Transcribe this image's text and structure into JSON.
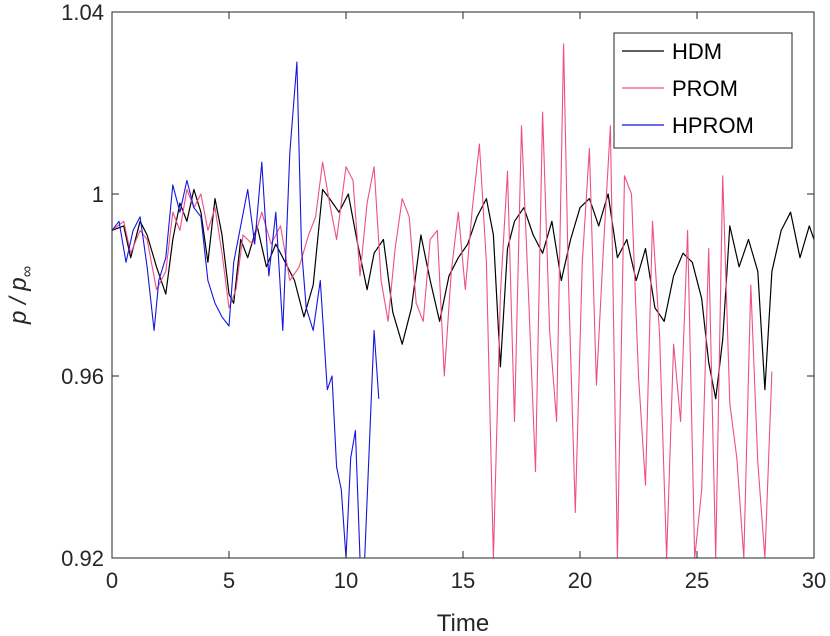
{
  "chart_data": {
    "type": "line",
    "xlabel": "Time",
    "ylabel": {
      "base": "p / p",
      "subscript": "∞"
    },
    "xlim": [
      0,
      30
    ],
    "ylim": [
      0.92,
      1.04
    ],
    "xticks": [
      0,
      5,
      10,
      15,
      20,
      25,
      30
    ],
    "xtick_labels": [
      "0",
      "5",
      "10",
      "15",
      "20",
      "25",
      "30"
    ],
    "yticks": [
      0.92,
      0.96,
      1,
      1.04
    ],
    "ytick_labels": [
      "0.92",
      "0.96",
      "1",
      "1.04"
    ],
    "grid": false,
    "legend_position": "top-right",
    "series": [
      {
        "name": "HDM",
        "color": "#000000",
        "x": [
          0,
          0.5,
          0.8,
          1.2,
          1.5,
          1.9,
          2.3,
          2.6,
          2.9,
          3.2,
          3.5,
          3.8,
          4.1,
          4.4,
          4.7,
          5.0,
          5.2,
          5.5,
          5.8,
          6.2,
          6.6,
          7.0,
          7.4,
          7.8,
          8.2,
          8.6,
          9.0,
          9.3,
          9.7,
          10.1,
          10.5,
          10.9,
          11.2,
          11.6,
          12.0,
          12.4,
          12.8,
          13.2,
          13.6,
          14.0,
          14.4,
          14.8,
          15.2,
          15.6,
          16.0,
          16.3,
          16.6,
          16.9,
          17.2,
          17.6,
          18.0,
          18.4,
          18.8,
          19.2,
          19.6,
          20.0,
          20.4,
          20.8,
          21.2,
          21.6,
          22.0,
          22.4,
          22.8,
          23.2,
          23.6,
          24.0,
          24.4,
          24.8,
          25.2,
          25.5,
          25.8,
          26.1,
          26.4,
          26.8,
          27.2,
          27.6,
          27.9,
          28.2,
          28.6,
          29.0,
          29.4,
          29.8,
          30.0
        ],
        "values": [
          0.992,
          0.993,
          0.986,
          0.994,
          0.991,
          0.984,
          0.978,
          0.99,
          0.998,
          0.994,
          1.001,
          0.996,
          0.985,
          0.999,
          0.991,
          0.978,
          0.976,
          0.99,
          0.986,
          0.993,
          0.984,
          0.989,
          0.985,
          0.981,
          0.973,
          0.98,
          1.001,
          0.999,
          0.996,
          1.0,
          0.989,
          0.979,
          0.987,
          0.99,
          0.974,
          0.967,
          0.975,
          0.991,
          0.981,
          0.972,
          0.982,
          0.986,
          0.989,
          0.995,
          0.999,
          0.991,
          0.962,
          0.988,
          0.994,
          0.997,
          0.991,
          0.987,
          0.994,
          0.981,
          0.99,
          0.997,
          0.999,
          0.993,
          1.0,
          0.986,
          0.99,
          0.981,
          0.988,
          0.975,
          0.972,
          0.982,
          0.987,
          0.985,
          0.977,
          0.963,
          0.955,
          0.968,
          0.993,
          0.984,
          0.99,
          0.983,
          0.957,
          0.983,
          0.992,
          0.996,
          0.986,
          0.993,
          0.99
        ]
      },
      {
        "name": "PROM",
        "color": "#ee4f8a",
        "x": [
          0,
          0.5,
          0.8,
          1.2,
          1.5,
          1.9,
          2.3,
          2.6,
          2.9,
          3.2,
          3.5,
          3.8,
          4.1,
          4.4,
          4.7,
          5.0,
          5.3,
          5.6,
          6.0,
          6.4,
          6.8,
          7.2,
          7.6,
          8.0,
          8.4,
          8.7,
          9.0,
          9.3,
          9.6,
          10.0,
          10.3,
          10.6,
          10.9,
          11.2,
          11.5,
          11.8,
          12.1,
          12.4,
          12.7,
          13.0,
          13.3,
          13.6,
          13.9,
          14.2,
          14.5,
          14.8,
          15.1,
          15.4,
          15.7,
          16.0,
          16.3,
          16.6,
          16.9,
          17.2,
          17.5,
          17.8,
          18.1,
          18.4,
          18.7,
          19.0,
          19.3,
          19.5,
          19.8,
          20.1,
          20.4,
          20.7,
          21.0,
          21.3,
          21.6,
          21.9,
          22.2,
          22.5,
          22.8,
          23.1,
          23.4,
          23.7,
          24.0,
          24.3,
          24.6,
          24.9,
          25.2,
          25.5,
          25.8,
          26.1,
          26.4,
          26.7,
          27.0,
          27.3,
          27.6,
          27.9,
          28.2
        ],
        "values": [
          0.992,
          0.994,
          0.987,
          0.992,
          0.99,
          0.979,
          0.983,
          0.996,
          0.992,
          1.001,
          0.997,
          1.0,
          0.992,
          0.997,
          0.987,
          0.975,
          0.979,
          0.991,
          0.989,
          0.996,
          0.989,
          0.993,
          0.981,
          0.984,
          0.991,
          0.995,
          1.007,
          0.998,
          0.99,
          1.006,
          1.003,
          0.982,
          0.998,
          1.006,
          0.981,
          0.972,
          0.988,
          0.999,
          0.995,
          0.976,
          0.972,
          0.99,
          0.992,
          0.96,
          0.983,
          0.996,
          0.979,
          0.997,
          1.011,
          0.985,
          0.92,
          0.978,
          1.005,
          0.95,
          1.015,
          0.978,
          0.939,
          1.018,
          0.97,
          0.95,
          1.033,
          0.982,
          0.93,
          0.985,
          1.01,
          0.958,
          0.988,
          1.015,
          0.92,
          1.004,
          1.0,
          0.96,
          0.936,
          0.994,
          0.969,
          0.92,
          0.967,
          0.95,
          0.992,
          0.92,
          0.935,
          0.988,
          0.92,
          1.004,
          0.954,
          0.942,
          0.92,
          0.98,
          0.941,
          0.92,
          0.961
        ]
      },
      {
        "name": "HPROM",
        "color": "#1515dd",
        "x": [
          0,
          0.3,
          0.6,
          0.9,
          1.2,
          1.5,
          1.8,
          2.0,
          2.3,
          2.6,
          2.9,
          3.2,
          3.5,
          3.8,
          4.1,
          4.4,
          4.7,
          5.0,
          5.2,
          5.5,
          5.8,
          6.1,
          6.4,
          6.7,
          7.0,
          7.3,
          7.6,
          7.9,
          8.1,
          8.3,
          8.6,
          8.9,
          9.2,
          9.4,
          9.6,
          9.8,
          10.0,
          10.2,
          10.4,
          10.6,
          10.8,
          11.0,
          11.2,
          11.4
        ],
        "values": [
          0.992,
          0.994,
          0.985,
          0.992,
          0.995,
          0.984,
          0.97,
          0.981,
          0.986,
          1.002,
          0.996,
          1.003,
          0.997,
          0.995,
          0.981,
          0.976,
          0.973,
          0.971,
          0.985,
          0.993,
          1.001,
          0.989,
          1.007,
          0.982,
          0.996,
          0.97,
          1.009,
          1.029,
          0.988,
          0.975,
          0.97,
          0.981,
          0.957,
          0.96,
          0.94,
          0.935,
          0.92,
          0.942,
          0.948,
          0.92,
          0.92,
          0.945,
          0.97,
          0.955
        ]
      }
    ]
  }
}
